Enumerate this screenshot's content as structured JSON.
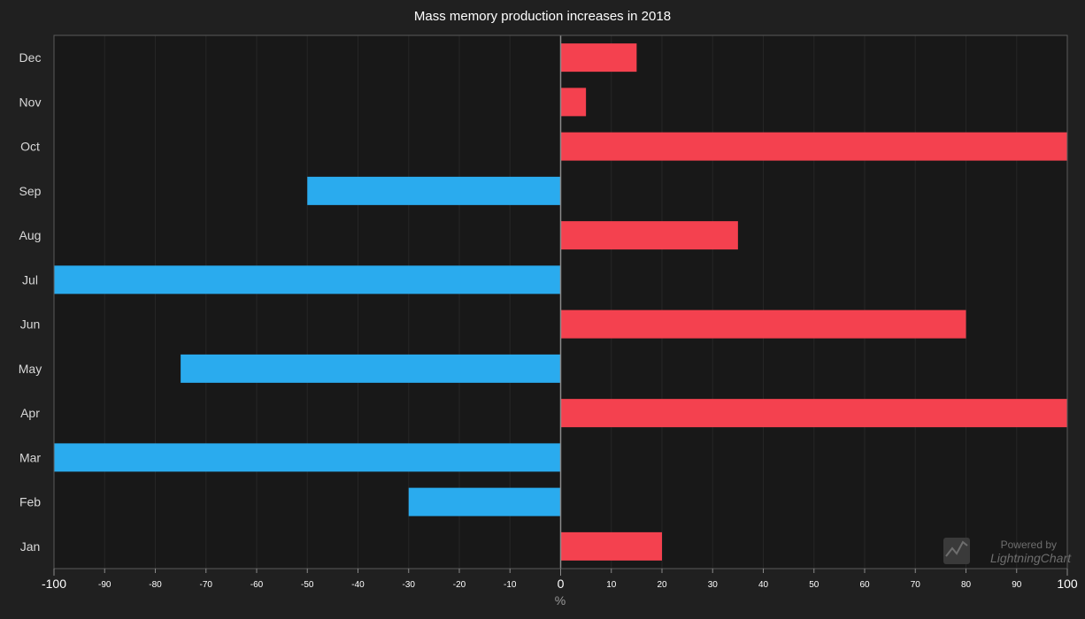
{
  "chart_data": {
    "type": "bar",
    "orientation": "horizontal",
    "title": "Mass memory production increases in 2018",
    "xlabel": "%",
    "ylabel": "",
    "xlim": [
      -100,
      100
    ],
    "x_ticks": [
      -100,
      -90,
      -80,
      -70,
      -60,
      -50,
      -40,
      -30,
      -20,
      -10,
      0,
      10,
      20,
      30,
      40,
      50,
      60,
      70,
      80,
      90,
      100
    ],
    "categories": [
      "Jan",
      "Feb",
      "Mar",
      "Apr",
      "May",
      "Jun",
      "Jul",
      "Aug",
      "Sep",
      "Oct",
      "Nov",
      "Dec"
    ],
    "values": [
      20,
      -30,
      -100,
      100,
      -75,
      80,
      -100,
      35,
      -50,
      100,
      5,
      15
    ],
    "colors": {
      "positive": "#f4414f",
      "negative": "#2aabee"
    },
    "grid": true,
    "legend": "none"
  },
  "watermark": {
    "line1": "Powered by",
    "line2": "LightningChart",
    "icon": "lightningchart-js-logo-icon"
  }
}
